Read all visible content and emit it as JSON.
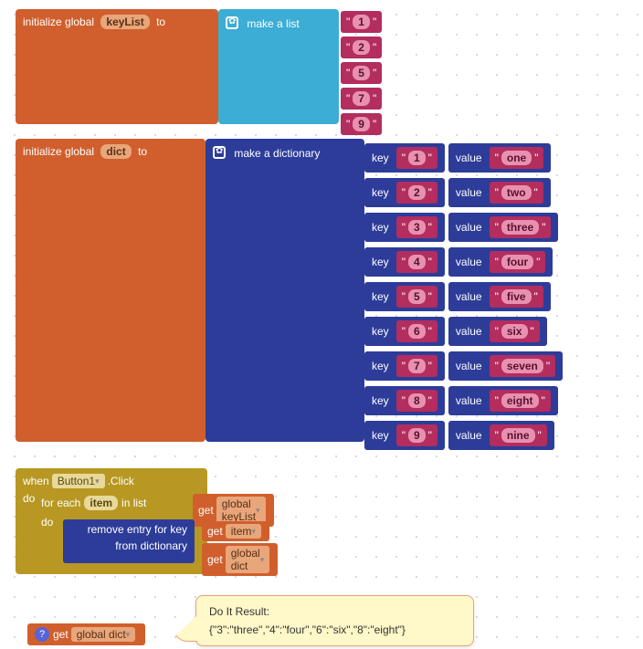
{
  "colors": {
    "orange": "#d05f2d",
    "cyan": "#3cadd4",
    "pink": "#b32d5e",
    "navy": "#2d3c99",
    "olive": "#b89822",
    "tooltip_bg": "#fff8c8",
    "tooltip_border": "#e8a080"
  },
  "block1": {
    "prefix": "initialize global",
    "var": "keyList",
    "suffix": "to",
    "maker": "make a list",
    "items": [
      "1",
      "2",
      "5",
      "7",
      "9"
    ]
  },
  "block2": {
    "prefix": "initialize global",
    "var": "dict",
    "suffix": "to",
    "maker": "make a dictionary",
    "key_label": "key",
    "value_label": "value",
    "pairs": [
      {
        "k": "1",
        "v": "one"
      },
      {
        "k": "2",
        "v": "two"
      },
      {
        "k": "3",
        "v": "three"
      },
      {
        "k": "4",
        "v": "four"
      },
      {
        "k": "5",
        "v": "five"
      },
      {
        "k": "6",
        "v": "six"
      },
      {
        "k": "7",
        "v": "seven"
      },
      {
        "k": "8",
        "v": "eight"
      },
      {
        "k": "9",
        "v": "nine"
      }
    ]
  },
  "block3": {
    "when": "when",
    "component": "Button1",
    "event": ".Click",
    "do": "do",
    "foreach_pre": "for each",
    "foreach_var": "item",
    "foreach_mid": "in list",
    "get": "get",
    "global_keyList": "global keyList",
    "remove_l1": "remove entry for key",
    "remove_l2": "from dictionary",
    "item_var": "item",
    "global_dict": "global dict"
  },
  "block4": {
    "get": "get",
    "global_dict": "global dict"
  },
  "tooltip": {
    "title": "Do It Result:",
    "body": "{\"3\":\"three\",\"4\":\"four\",\"6\":\"six\",\"8\":\"eight\"}"
  }
}
